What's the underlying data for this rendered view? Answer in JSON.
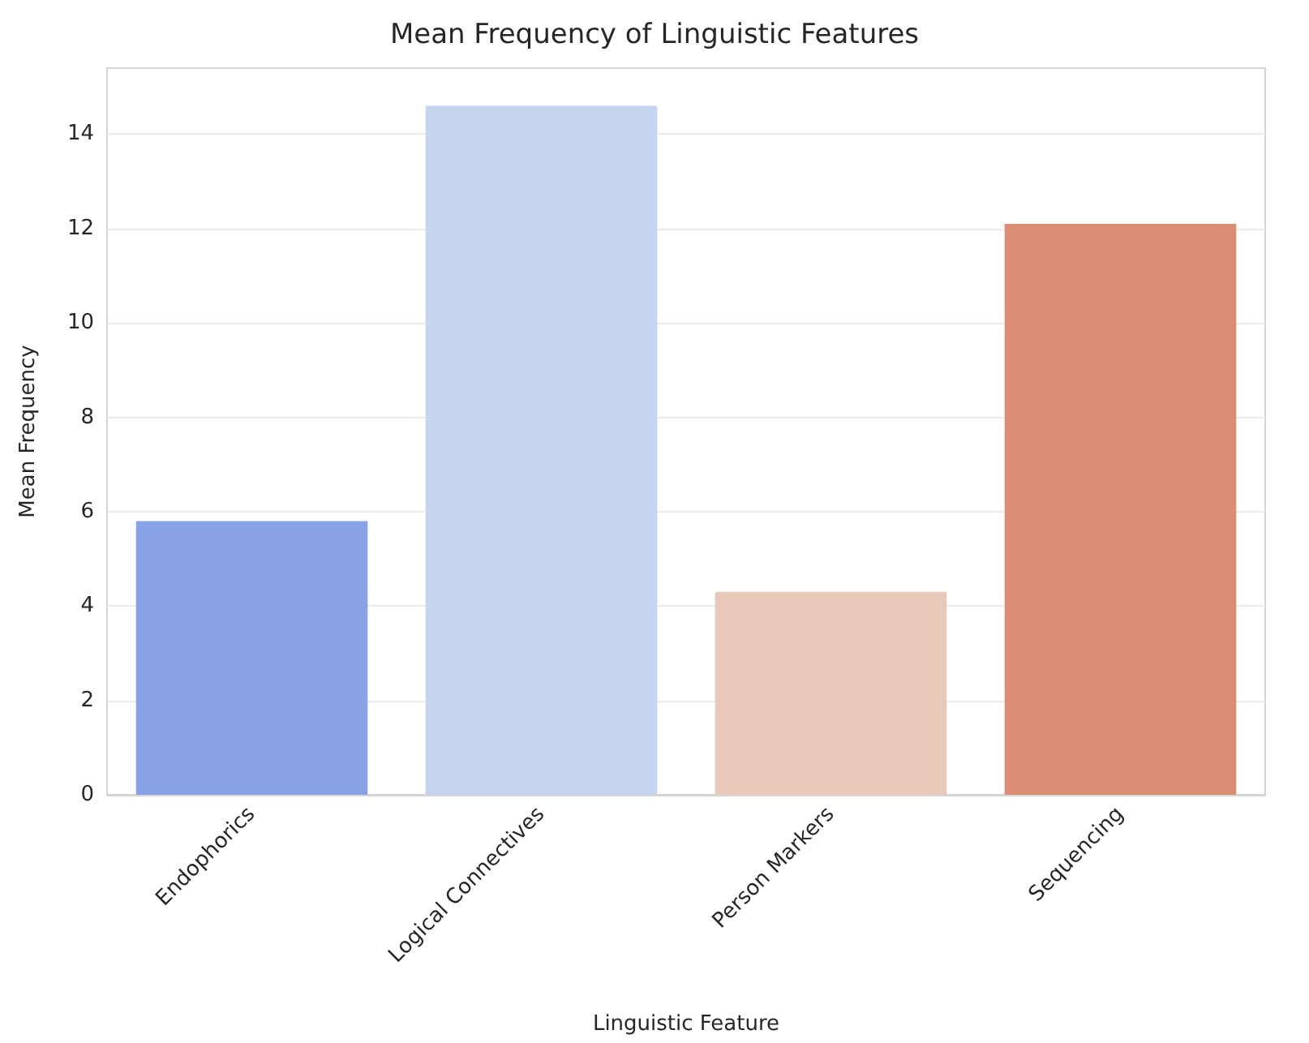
{
  "chart_data": {
    "type": "bar",
    "title": "Mean Frequency of Linguistic Features",
    "xlabel": "Linguistic Feature",
    "ylabel": "Mean Frequency",
    "categories": [
      "Endophorics",
      "Logical Connectives",
      "Person Markers",
      "Sequencing"
    ],
    "values": [
      5.8,
      14.6,
      4.3,
      12.1
    ],
    "colors": [
      "#87a2e6",
      "#c5d4ee",
      "#e8c9b9",
      "#da8c75"
    ],
    "ylim": [
      0,
      15.4
    ],
    "yticks": [
      0,
      2,
      4,
      6,
      8,
      10,
      12,
      14
    ],
    "grid": "y"
  }
}
